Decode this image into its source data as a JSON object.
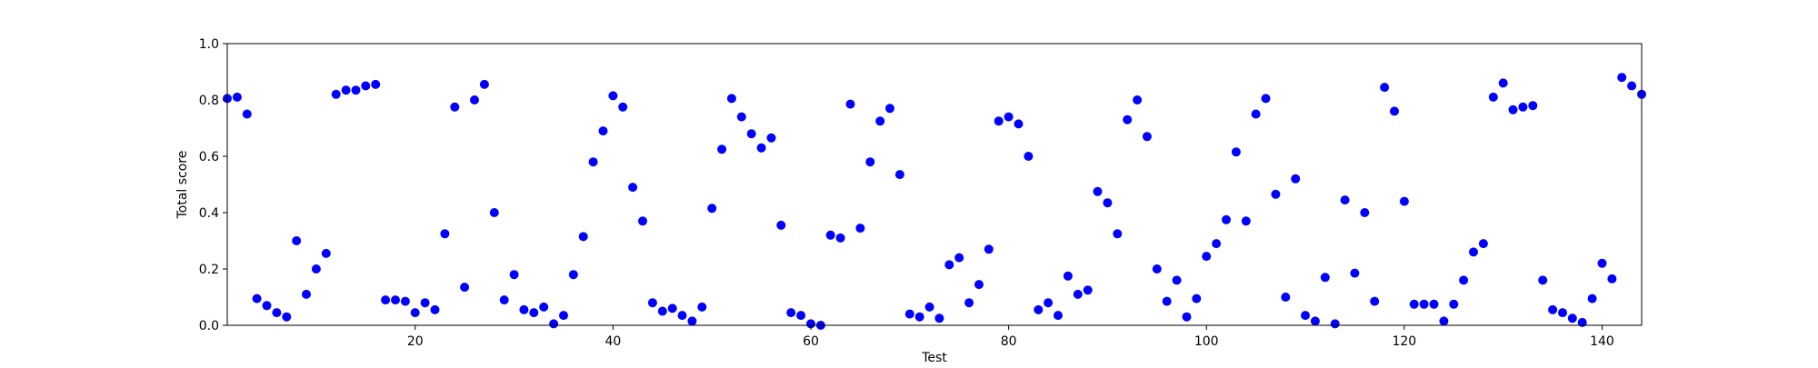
{
  "chart_data": {
    "type": "scatter",
    "title": "",
    "xlabel": "Test",
    "ylabel": "Total score",
    "xlim": [
      1,
      144
    ],
    "ylim": [
      0.0,
      1.0
    ],
    "xticks": [
      20,
      40,
      60,
      80,
      100,
      120,
      140
    ],
    "yticks": [
      0.0,
      0.2,
      0.4,
      0.6,
      0.8,
      1.0
    ],
    "xtick_labels": [
      "20",
      "40",
      "60",
      "80",
      "100",
      "120",
      "140"
    ],
    "ytick_labels": [
      "0.0",
      "0.2",
      "0.4",
      "0.6",
      "0.8",
      "1.0"
    ],
    "grid": false,
    "legend": "none",
    "marker_color": "#0000ff",
    "x": [
      1,
      2,
      3,
      4,
      5,
      6,
      7,
      8,
      9,
      10,
      11,
      12,
      13,
      14,
      15,
      16,
      17,
      18,
      19,
      20,
      21,
      22,
      23,
      24,
      25,
      26,
      27,
      28,
      29,
      30,
      31,
      32,
      33,
      34,
      35,
      36,
      37,
      38,
      39,
      40,
      41,
      42,
      43,
      44,
      45,
      46,
      47,
      48,
      49,
      50,
      51,
      52,
      53,
      54,
      55,
      56,
      57,
      58,
      59,
      60,
      61,
      62,
      63,
      64,
      65,
      66,
      67,
      68,
      69,
      70,
      71,
      72,
      73,
      74,
      75,
      76,
      77,
      78,
      79,
      80,
      81,
      82,
      83,
      84,
      85,
      86,
      87,
      88,
      89,
      90,
      91,
      92,
      93,
      94,
      95,
      96,
      97,
      98,
      99,
      100,
      101,
      102,
      103,
      104,
      105,
      106,
      107,
      108,
      109,
      110,
      111,
      112,
      113,
      114,
      115,
      116,
      117,
      118,
      119,
      120,
      121,
      122,
      123,
      124,
      125,
      126,
      127,
      128,
      129,
      130,
      131,
      132,
      133,
      134,
      135,
      136,
      137,
      138,
      139,
      140,
      141,
      142,
      143,
      144
    ],
    "y": [
      0.805,
      0.81,
      0.75,
      0.095,
      0.07,
      0.045,
      0.03,
      0.3,
      0.11,
      0.2,
      0.255,
      0.82,
      0.835,
      0.835,
      0.85,
      0.855,
      0.09,
      0.09,
      0.085,
      0.045,
      0.08,
      0.055,
      0.325,
      0.775,
      0.135,
      0.8,
      0.855,
      0.4,
      0.09,
      0.18,
      0.055,
      0.045,
      0.065,
      0.005,
      0.035,
      0.18,
      0.315,
      0.58,
      0.69,
      0.815,
      0.775,
      0.49,
      0.37,
      0.08,
      0.05,
      0.06,
      0.035,
      0.015,
      0.065,
      0.415,
      0.625,
      0.805,
      0.74,
      0.68,
      0.63,
      0.665,
      0.355,
      0.045,
      0.035,
      0.005,
      0.0,
      0.32,
      0.31,
      0.785,
      0.345,
      0.58,
      0.725,
      0.77,
      0.535,
      0.04,
      0.03,
      0.065,
      0.025,
      0.215,
      0.24,
      0.08,
      0.145,
      0.27,
      0.725,
      0.74,
      0.715,
      0.6,
      0.055,
      0.08,
      0.035,
      0.175,
      0.11,
      0.125,
      0.475,
      0.435,
      0.325,
      0.73,
      0.8,
      0.67,
      0.2,
      0.085,
      0.16,
      0.03,
      0.095,
      0.245,
      0.29,
      0.375,
      0.615,
      0.37,
      0.75,
      0.805,
      0.465,
      0.1,
      0.52,
      0.035,
      0.015,
      0.17,
      0.005,
      0.445,
      0.185,
      0.4,
      0.085,
      0.845,
      0.76,
      0.44,
      0.075,
      0.075,
      0.075,
      0.015,
      0.075,
      0.16,
      0.26,
      0.29,
      0.81,
      0.86,
      0.765,
      0.775,
      0.78,
      0.16,
      0.055,
      0.045,
      0.025,
      0.01,
      0.095,
      0.22,
      0.165,
      0.88,
      0.85,
      0.82
    ]
  }
}
